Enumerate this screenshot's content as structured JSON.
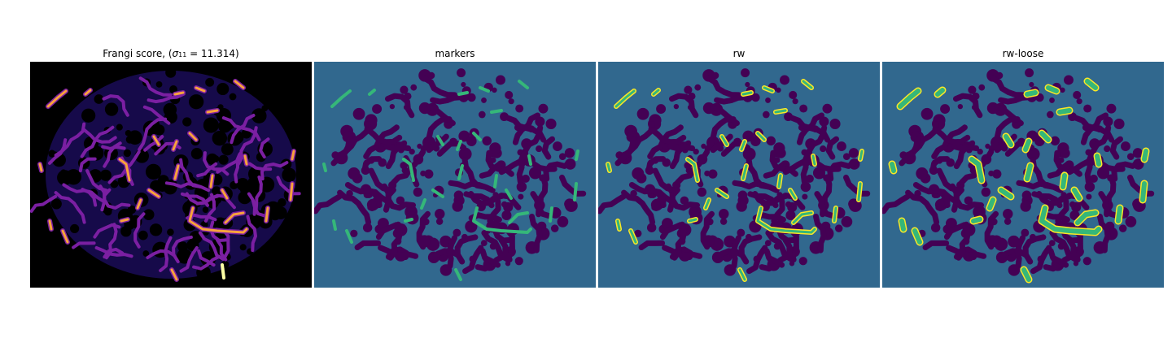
{
  "panels": [
    {
      "id": "frangi",
      "title_prefix": "Frangi score, (",
      "sigma": "σ",
      "sigma_sub": "11",
      "title_suffix": " = 11.314)"
    },
    {
      "id": "markers",
      "title": "markers"
    },
    {
      "id": "rw",
      "title": "rw"
    },
    {
      "id": "rw-loose",
      "title": "rw-loose"
    }
  ],
  "colors": {
    "frangi_background": "#000000",
    "frangi_blob": "#1a0c5c",
    "frangi_ridge": "#7b1fa2",
    "frangi_hot": "#f8a33c",
    "frangi_peak": "#fcffa4",
    "label_background": "#31688e",
    "label_region": "#440154",
    "label_marker": "#35b779",
    "label_outline": "#fde725"
  }
}
